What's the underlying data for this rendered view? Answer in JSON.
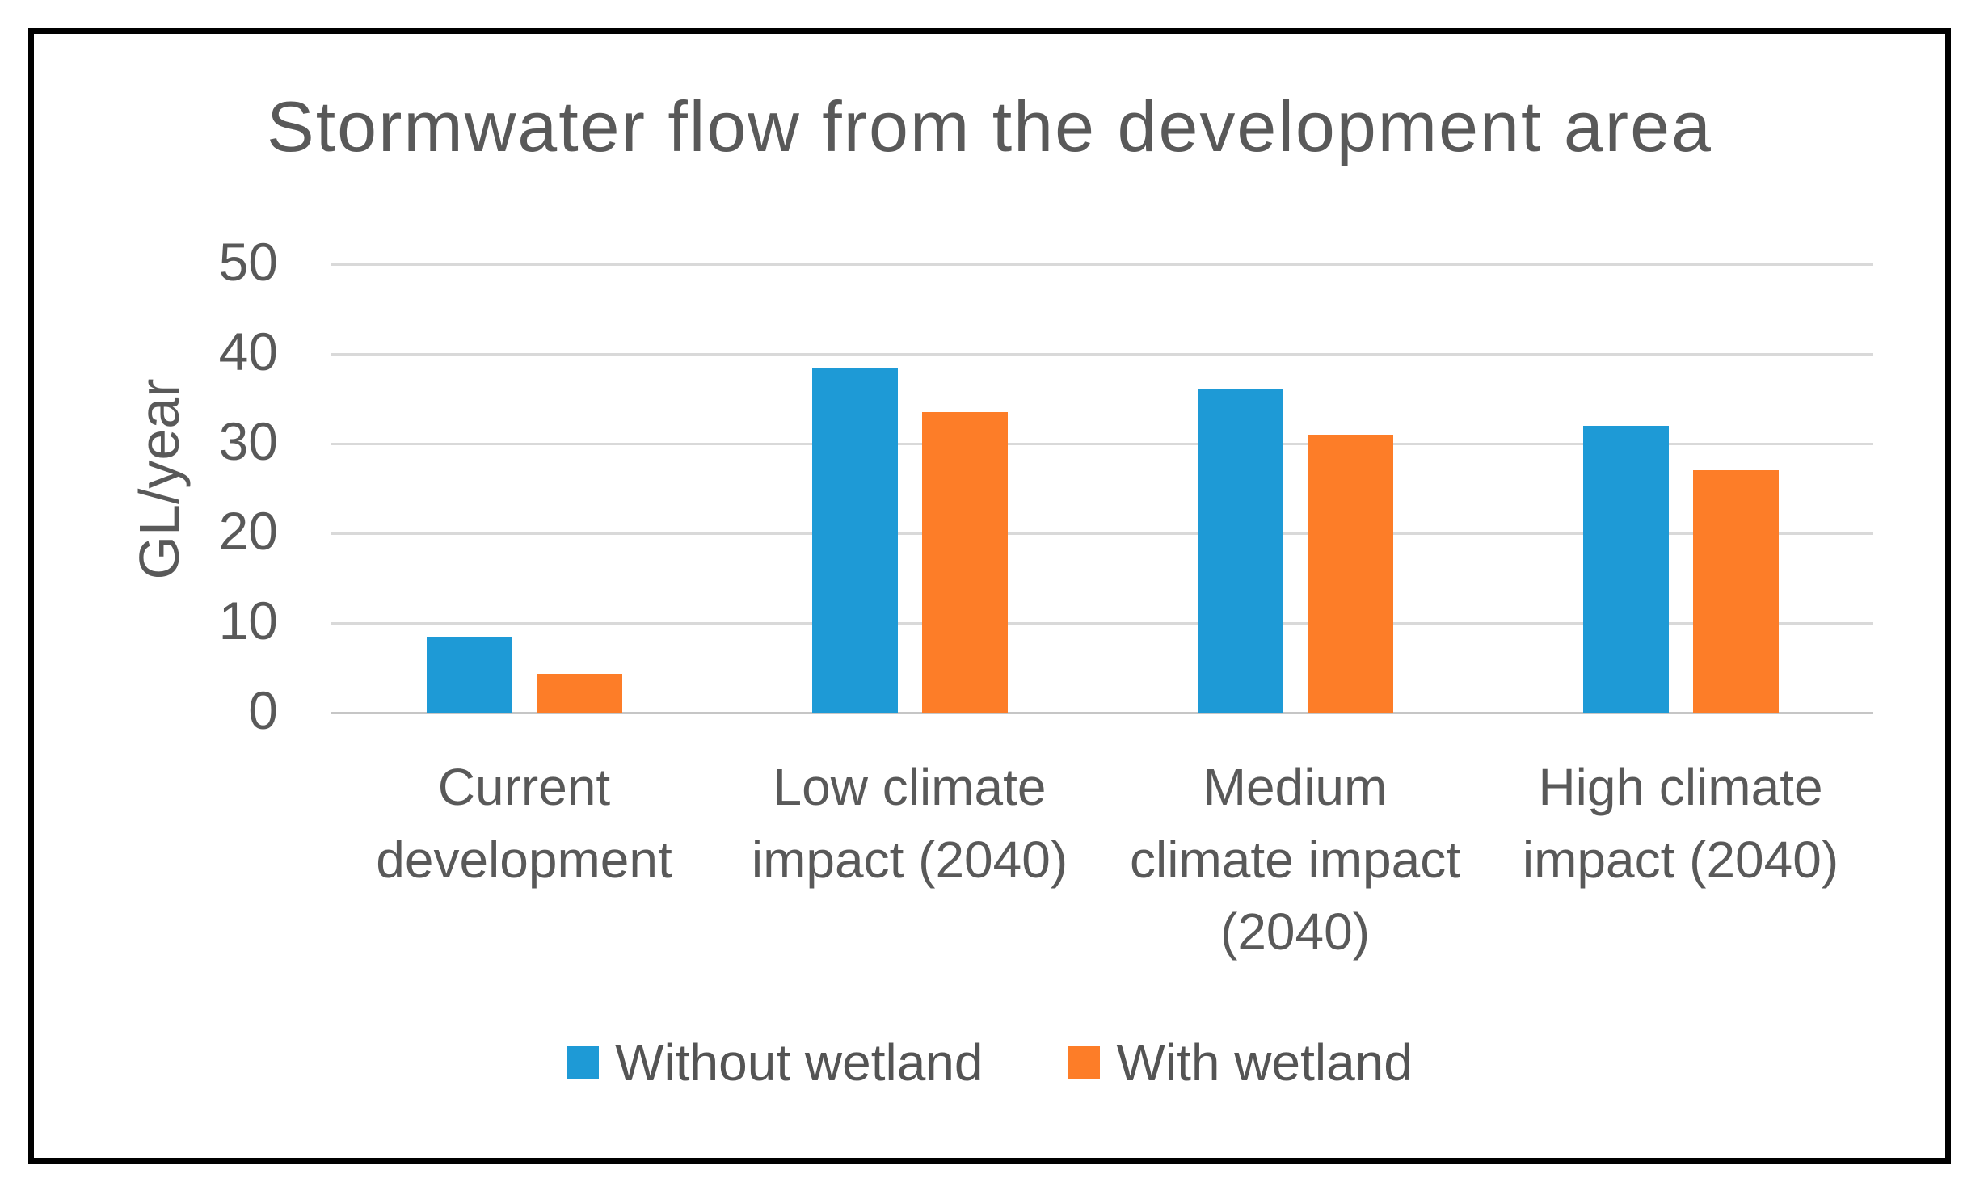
{
  "chart_data": {
    "type": "bar",
    "title": "Stormwater flow from the development area",
    "categories": [
      "Current development",
      "Low climate impact (2040)",
      "Medium climate impact (2040)",
      "High climate impact (2040)"
    ],
    "series": [
      {
        "name": "Without wetland",
        "color": "#1E9AD6",
        "values": [
          8.5,
          38.5,
          36,
          32
        ]
      },
      {
        "name": "With wetland",
        "color": "#FD7D28",
        "values": [
          4.3,
          33.5,
          31,
          27
        ]
      }
    ],
    "xlabel": "",
    "ylabel": "GL/year",
    "ylim": [
      0,
      50
    ],
    "yticks": [
      0,
      10,
      20,
      30,
      40,
      50
    ],
    "grid": true,
    "legend_position": "bottom"
  },
  "colors": {
    "series_without_wetland": "#1E9AD6",
    "series_with_wetland": "#FD7D28",
    "gridline": "#D9D9D9",
    "axis_line": "#C6C6C6",
    "text": "#595959",
    "border": "#000000",
    "background": "#FFFFFF"
  }
}
